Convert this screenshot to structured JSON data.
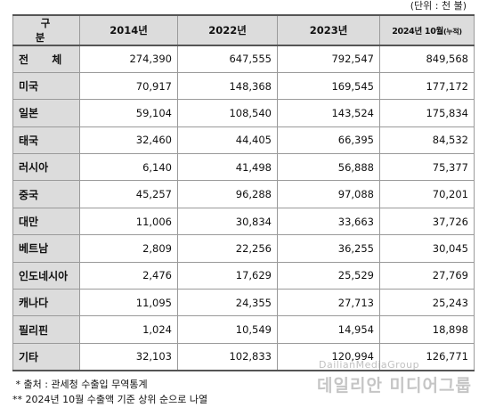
{
  "unit": "(단위 : 천 불)",
  "columns": {
    "label": "구 분",
    "y2014": "2014년",
    "y2022": "2022년",
    "y2023": "2023년",
    "y2024_main": "2024년 10월",
    "y2024_paren": "(누적)"
  },
  "rows": [
    {
      "country": "전 체",
      "v2014": "274,390",
      "v2022": "647,555",
      "v2023": "792,547",
      "v2024": "849,568"
    },
    {
      "country": "미국",
      "v2014": "70,917",
      "v2022": "148,368",
      "v2023": "169,545",
      "v2024": "177,172"
    },
    {
      "country": "일본",
      "v2014": "59,104",
      "v2022": "108,540",
      "v2023": "143,524",
      "v2024": "175,834"
    },
    {
      "country": "태국",
      "v2014": "32,460",
      "v2022": "44,405",
      "v2023": "66,395",
      "v2024": "84,532"
    },
    {
      "country": "러시아",
      "v2014": "6,140",
      "v2022": "41,498",
      "v2023": "56,888",
      "v2024": "75,377"
    },
    {
      "country": "중국",
      "v2014": "45,257",
      "v2022": "96,288",
      "v2023": "97,088",
      "v2024": "70,201"
    },
    {
      "country": "대만",
      "v2014": "11,006",
      "v2022": "30,834",
      "v2023": "33,663",
      "v2024": "37,726"
    },
    {
      "country": "베트남",
      "v2014": "2,809",
      "v2022": "22,256",
      "v2023": "36,255",
      "v2024": "30,045"
    },
    {
      "country": "인도네시아",
      "v2014": "2,476",
      "v2022": "17,629",
      "v2023": "25,529",
      "v2024": "27,769"
    },
    {
      "country": "캐나다",
      "v2014": "11,095",
      "v2022": "24,355",
      "v2023": "27,713",
      "v2024": "25,243"
    },
    {
      "country": "필리핀",
      "v2014": "1,024",
      "v2022": "10,549",
      "v2023": "14,954",
      "v2024": "18,898"
    },
    {
      "country": "기타",
      "v2014": "32,103",
      "v2022": "102,833",
      "v2023": "120,994",
      "v2024": "126,771"
    }
  ],
  "notes": [
    " * 출처 : 관세청 수출입 무역통계",
    "** 2024년 10월 수출액 기준 상위 순으로 나열"
  ],
  "watermark": {
    "en": "DailianMediaGroup",
    "ko": "데일리안 미디어그룹"
  }
}
